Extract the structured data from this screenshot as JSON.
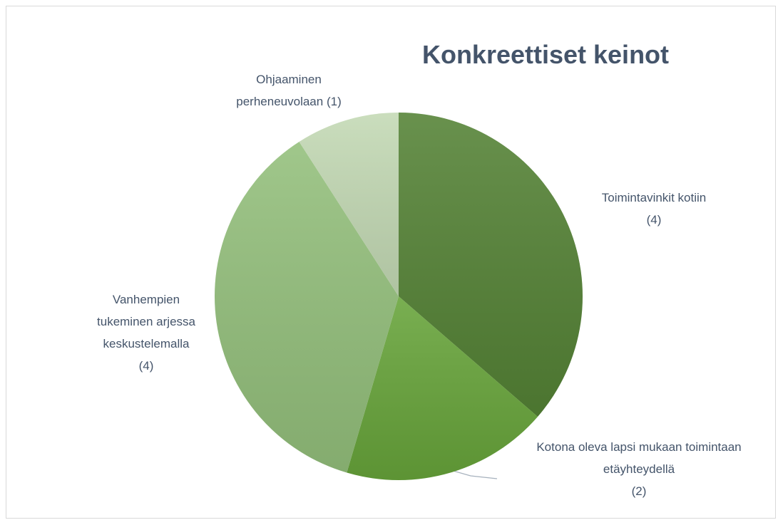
{
  "chart_data": {
    "type": "pie",
    "title": "Konkreettiset keinot",
    "categories": [
      "Toimintavinkit kotiin",
      "Kotona oleva lapsi mukaan toimintaan etäyhteydellä",
      "Vanhempien tukeminen arjessa keskustelemalla",
      "Ohjaaminen perheneuvolaan"
    ],
    "values": [
      4,
      2,
      4,
      1
    ],
    "value_labels": [
      "(4)",
      "(2)",
      "(4)",
      "(1)"
    ],
    "colors": [
      "#548235",
      "#67a43a",
      "#93bf7b",
      "#c3d9b4"
    ]
  }
}
